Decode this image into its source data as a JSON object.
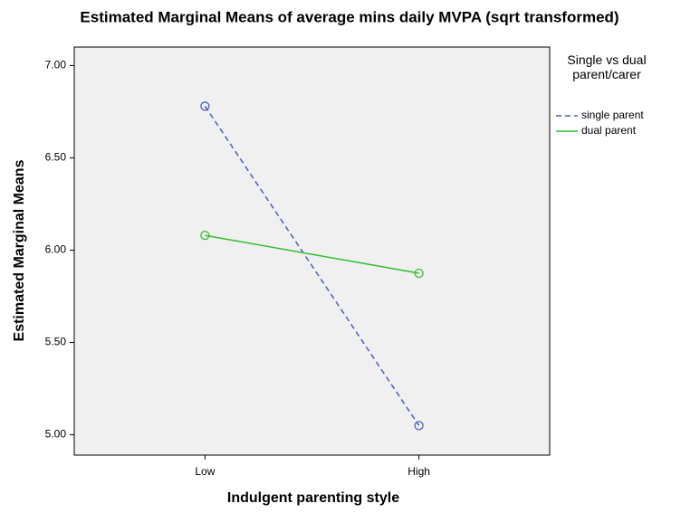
{
  "chart_data": {
    "type": "line",
    "title": "Estimated Marginal Means of average mins daily MVPA (sqrt transformed)",
    "x_label": "Indulgent parenting style",
    "y_label": "Estimated Marginal Means",
    "legend_title": "Single vs dual parent/carer",
    "legend_position": "right",
    "categories": [
      "Low",
      "High"
    ],
    "series": [
      {
        "name": "single parent",
        "color": "#4a5cc4",
        "style": "dashed",
        "values": [
          6.78,
          5.05
        ]
      },
      {
        "name": "dual parent",
        "color": "#2fbf2f",
        "style": "solid",
        "values": [
          6.08,
          5.875
        ]
      }
    ],
    "ylim": [
      4.89,
      7.1
    ],
    "yticks": [
      {
        "value": 5,
        "label": "5.00"
      },
      {
        "value": 5.5,
        "label": "5.50"
      },
      {
        "value": 6,
        "label": "6.00"
      },
      {
        "value": 6.5,
        "label": "6.50"
      },
      {
        "value": 7,
        "label": "7.00"
      }
    ],
    "grid": false,
    "plot_background": "#f0f0f0"
  }
}
